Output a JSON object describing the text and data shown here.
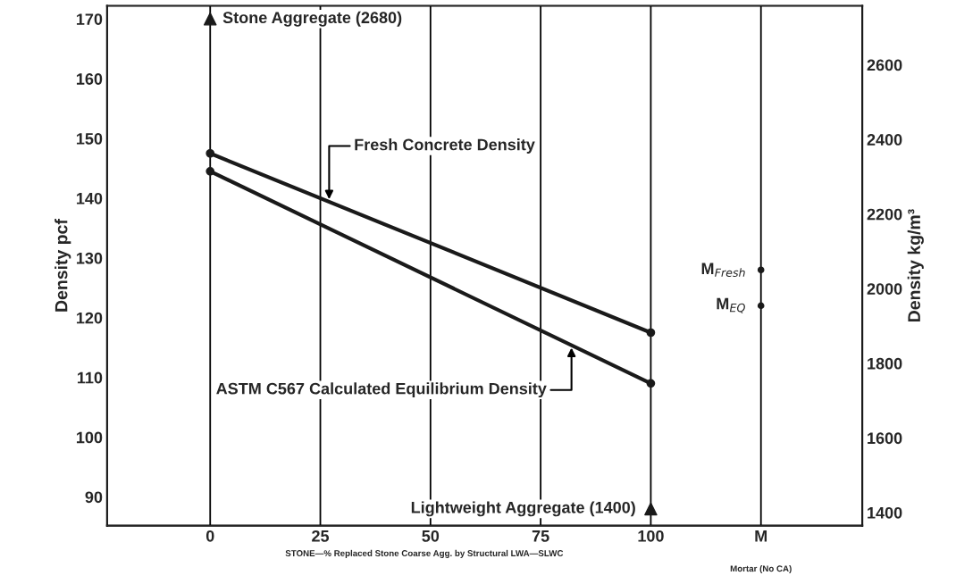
{
  "chart_data": {
    "type": "line",
    "ylabel": "Density pcf",
    "y2label": "Density kg/m³",
    "xlabel": "STONE—% Replaced Stone Coarse Agg. by Structural LWA—SLWC",
    "xlim": [
      -23.4,
      148
    ],
    "xticks": [
      0,
      25,
      50,
      75,
      100,
      {
        "value": 125,
        "label": "M"
      }
    ],
    "ylim": [
      85.2,
      172.2
    ],
    "yticks": [
      90,
      100,
      110,
      120,
      130,
      140,
      150,
      160,
      170
    ],
    "y2lim": [
      1365,
      2758
    ],
    "y2ticks": [
      1400,
      1600,
      1800,
      2000,
      2200,
      2400,
      2600
    ],
    "grid": "x",
    "legend": false,
    "marker": "circle",
    "line_style": "solid",
    "series": [
      {
        "name": "Fresh Concrete Density",
        "color": "#1a1a1a",
        "x": [
          0,
          100
        ],
        "values": [
          147.5,
          117.5
        ]
      },
      {
        "name": "ASTM C567 Calculated Equilibrium Density",
        "color": "#1a1a1a",
        "x": [
          0,
          100
        ],
        "values": [
          144.5,
          109
        ]
      },
      {
        "name": "Stone Aggregate (2680)",
        "type": "scatter",
        "marker": "triangle",
        "color": "#1a1a1a",
        "x": [
          0
        ],
        "values": [
          170
        ]
      },
      {
        "name": "Lightweight Aggregate (1400)",
        "type": "scatter",
        "marker": "triangle",
        "color": "#1a1a1a",
        "x": [
          100
        ],
        "values": [
          88
        ]
      },
      {
        "name": "M$_{Fresh}$",
        "type": "scatter",
        "marker": "circle",
        "color": "#1a1a1a",
        "x": [
          125
        ],
        "values": [
          128
        ]
      },
      {
        "name": "M$_{EQ}$",
        "type": "scatter",
        "marker": "circle",
        "color": "#1a1a1a",
        "x": [
          125
        ],
        "values": [
          122
        ]
      }
    ],
    "annotations": [
      "Mortar (No CA)"
    ]
  }
}
